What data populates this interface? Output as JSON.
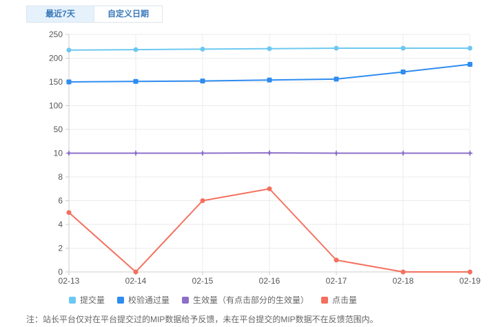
{
  "tabs": {
    "recent_label": "最近7天",
    "custom_label": "自定义日期"
  },
  "chart_data": {
    "type": "line",
    "x": [
      "02-13",
      "02-14",
      "02-15",
      "02-16",
      "02-17",
      "02-18",
      "02-19"
    ],
    "y_axis_ticks": [
      0,
      2,
      4,
      6,
      8,
      10,
      50,
      100,
      150,
      200,
      250
    ],
    "y_axis_style": "broken dual scale: 0-10 step 2 (lower), 10-250 step 50 (upper), ticks evenly spaced",
    "grid": true,
    "legend_position": "bottom-left",
    "series": [
      {
        "name": "提交量",
        "color": "#6dc8f1",
        "symbol": "circle",
        "values": [
          217,
          218,
          219,
          220,
          221,
          221,
          221
        ]
      },
      {
        "name": "校验通过量",
        "color": "#2d8cf0",
        "symbol": "square",
        "values": [
          150,
          151,
          152,
          154,
          156,
          171,
          187
        ]
      },
      {
        "name": "生效量（有点击部分的生效量）",
        "color": "#8d6fc9",
        "symbol": "star",
        "values": [
          10,
          10,
          10,
          10.5,
          10,
          10,
          10
        ]
      },
      {
        "name": "点击量",
        "color": "#f4705e",
        "symbol": "circle",
        "values": [
          5,
          0,
          6,
          7,
          1,
          0,
          0
        ]
      }
    ]
  },
  "note": "注：站长平台仅对在平台提交过的MIP数据给予反馈，未在平台提交的MIP数据不在反馈范围内。",
  "colors": {
    "tab_active_bg": "#e5f1fb",
    "tab_text": "#3878b8",
    "grid_line": "#ebebeb",
    "axis_line": "#cccccc",
    "tick_label": "#555555"
  }
}
